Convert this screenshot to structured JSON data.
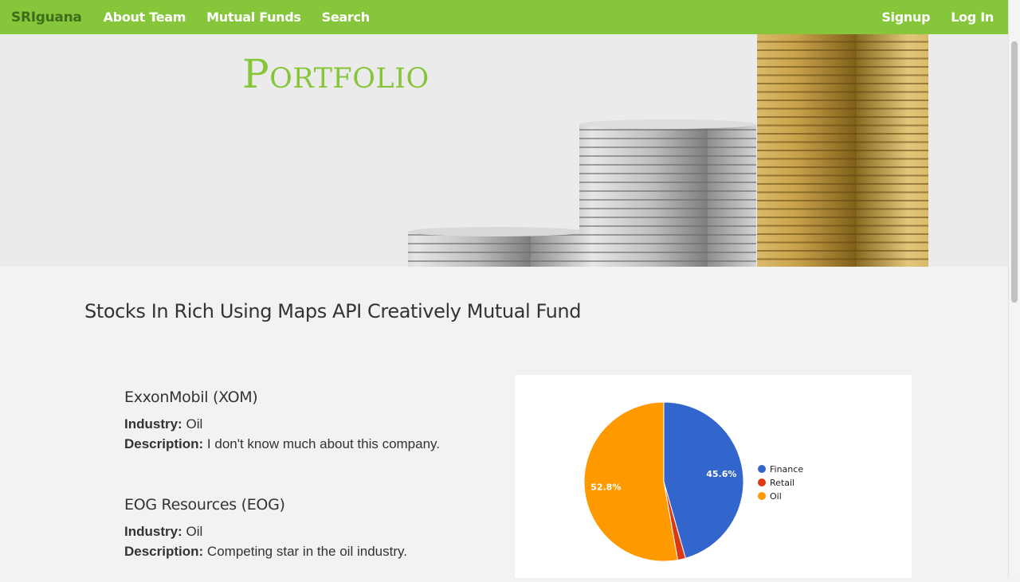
{
  "nav": {
    "brand": "SRIguana",
    "links": [
      "About Team",
      "Mutual Funds",
      "Search"
    ],
    "right_links": [
      "Signup",
      "Log In"
    ]
  },
  "hero": {
    "title": "Portfolio"
  },
  "fund": {
    "title": "Stocks In Rich Using Maps API Creatively Mutual Fund"
  },
  "stocks": [
    {
      "name": "ExxonMobil (XOM)",
      "industry_label": "Industry:",
      "industry": "Oil",
      "description_label": "Description:",
      "description": "I don't know much about this company."
    },
    {
      "name": "EOG Resources (EOG)",
      "industry_label": "Industry:",
      "industry": "Oil",
      "description_label": "Description:",
      "description": "Competing star in the oil industry."
    }
  ],
  "colors": {
    "accent": "#86c63b",
    "brand_text": "#3f6e1b"
  },
  "chart_data": {
    "type": "pie",
    "categories": [
      "Finance",
      "Retail",
      "Oil"
    ],
    "values": [
      45.6,
      1.6,
      52.8
    ],
    "colors": [
      "#3366cc",
      "#dc3912",
      "#ff9900"
    ],
    "slice_labels": [
      "45.6%",
      "",
      "52.8%"
    ],
    "legend": "right"
  }
}
